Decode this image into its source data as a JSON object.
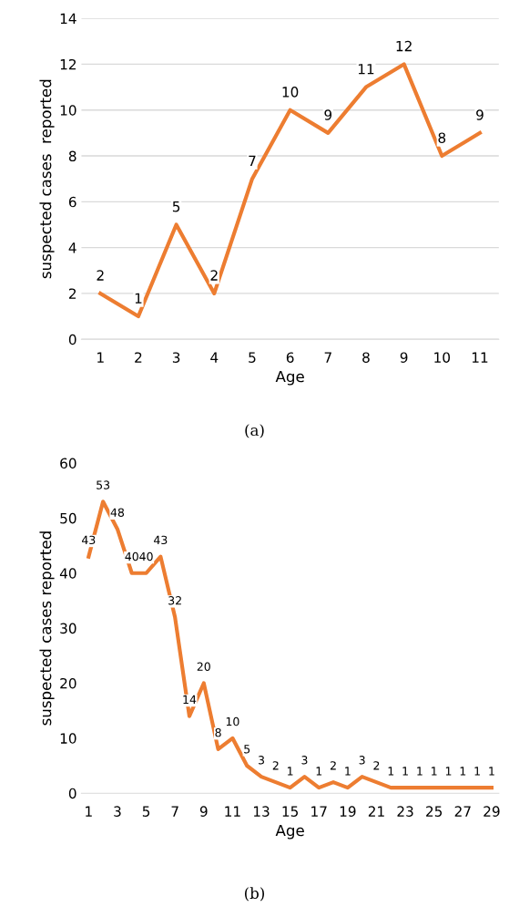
{
  "chart_data": [
    {
      "type": "line",
      "xlabel": "Age",
      "ylabel": "suspected cases  reported",
      "categories": [
        "1",
        "2",
        "3",
        "4",
        "5",
        "6",
        "7",
        "8",
        "9",
        "10",
        "11"
      ],
      "series": [
        {
          "color": "#ed7d31",
          "values": [
            2,
            1,
            5,
            2,
            7,
            10,
            9,
            11,
            12,
            8,
            9
          ]
        }
      ],
      "ylim": [
        0,
        14
      ],
      "yticks": [
        0,
        2,
        4,
        6,
        8,
        10,
        12,
        14
      ],
      "grid": "y",
      "data_labels": true,
      "marker": "none",
      "annotations": [
        "(a)"
      ]
    },
    {
      "type": "line",
      "xlabel": "Age",
      "ylabel": "suspected cases reported",
      "categories": [
        "1",
        null,
        "3",
        null,
        "5",
        null,
        "7",
        null,
        "9",
        null,
        "11",
        null,
        "13",
        null,
        "15",
        null,
        "17",
        null,
        "19",
        null,
        "21",
        null,
        "23",
        null,
        "25",
        null,
        "27",
        null,
        "29"
      ],
      "series": [
        {
          "color": "#ed7d31",
          "values": [
            43,
            53,
            48,
            40,
            40,
            43,
            32,
            14,
            20,
            8,
            10,
            5,
            3,
            2,
            1,
            3,
            1,
            2,
            1,
            3,
            2,
            1,
            1,
            1,
            1,
            1,
            1,
            1,
            1
          ]
        }
      ],
      "ylim": [
        0,
        60
      ],
      "yticks": [
        0,
        10,
        20,
        30,
        40,
        50,
        60
      ],
      "grid": false,
      "data_labels": true,
      "marker": "none",
      "annotations": [
        "(b)"
      ]
    }
  ]
}
